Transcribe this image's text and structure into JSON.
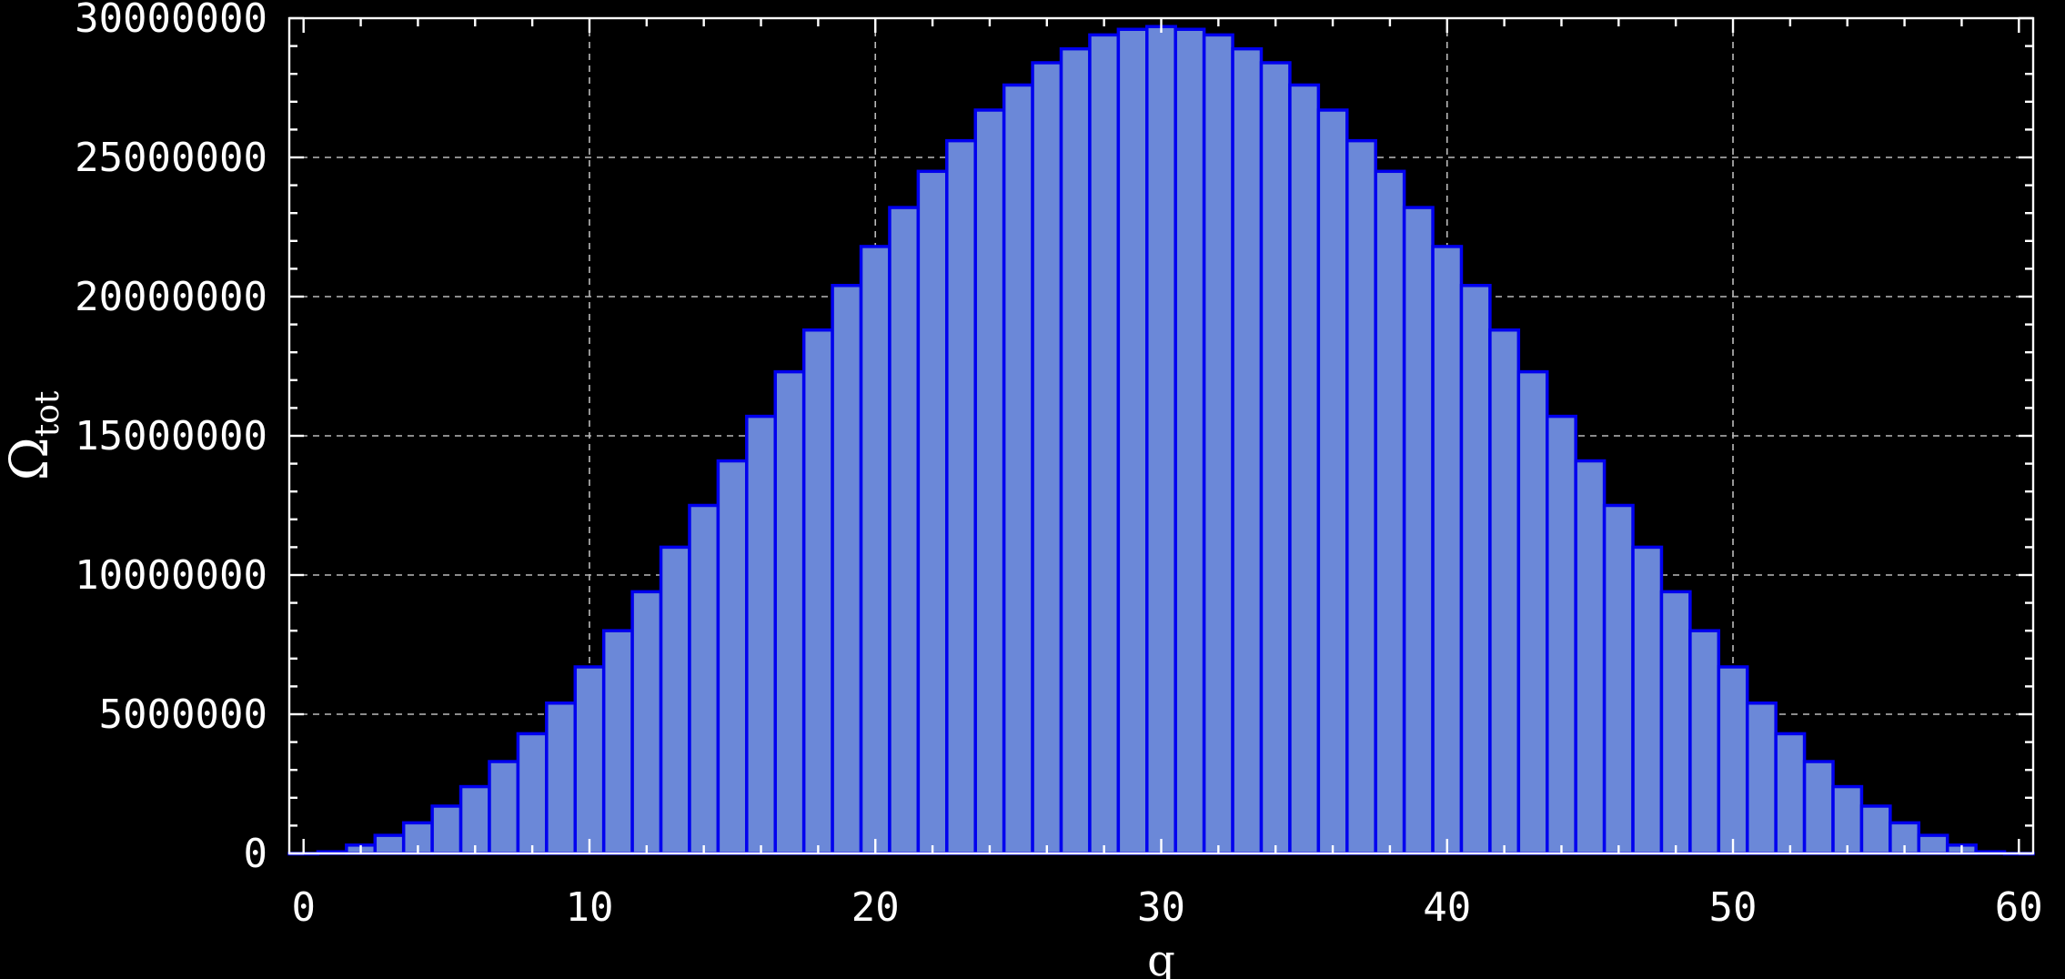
{
  "chart_data": {
    "type": "bar",
    "title": "",
    "xlabel": "q",
    "ylabel": "Ω",
    "ylabel_subscript": "tot",
    "xlim": [
      -0.5,
      60.5
    ],
    "ylim": [
      0,
      30000000
    ],
    "xticks": [
      0,
      10,
      20,
      30,
      40,
      50,
      60
    ],
    "xtick_labels": [
      "0",
      "10",
      "20",
      "30",
      "40",
      "50",
      "60"
    ],
    "yticks": [
      0,
      5000000,
      10000000,
      15000000,
      20000000,
      25000000,
      30000000
    ],
    "ytick_labels": [
      "0",
      "5000000",
      "10000000",
      "15000000",
      "20000000",
      "25000000",
      "30000000"
    ],
    "grid": true,
    "bar_color": "#6b88d8",
    "bar_edge_color": "#0000ee",
    "x": [
      0,
      1,
      2,
      3,
      4,
      5,
      6,
      7,
      8,
      9,
      10,
      11,
      12,
      13,
      14,
      15,
      16,
      17,
      18,
      19,
      20,
      21,
      22,
      23,
      24,
      25,
      26,
      27,
      28,
      29,
      30,
      31,
      32,
      33,
      34,
      35,
      36,
      37,
      38,
      39,
      40,
      41,
      42,
      43,
      44,
      45,
      46,
      47,
      48,
      49,
      50,
      51,
      52,
      53,
      54,
      55,
      56,
      57,
      58,
      59,
      60
    ],
    "values": [
      0,
      60000,
      300000,
      650000,
      1100000,
      1700000,
      2400000,
      3300000,
      4300000,
      5400000,
      6700000,
      8000000,
      9400000,
      11000000,
      12500000,
      14100000,
      15700000,
      17300000,
      18800000,
      20400000,
      21800000,
      23200000,
      24500000,
      25600000,
      26700000,
      27600000,
      28400000,
      28900000,
      29400000,
      29600000,
      29700000,
      29600000,
      29400000,
      28900000,
      28400000,
      27600000,
      26700000,
      25600000,
      24500000,
      23200000,
      21800000,
      20400000,
      18800000,
      17300000,
      15700000,
      14100000,
      12500000,
      11000000,
      9400000,
      8000000,
      6700000,
      5400000,
      4300000,
      3300000,
      2400000,
      1700000,
      1100000,
      650000,
      300000,
      60000,
      0
    ]
  }
}
